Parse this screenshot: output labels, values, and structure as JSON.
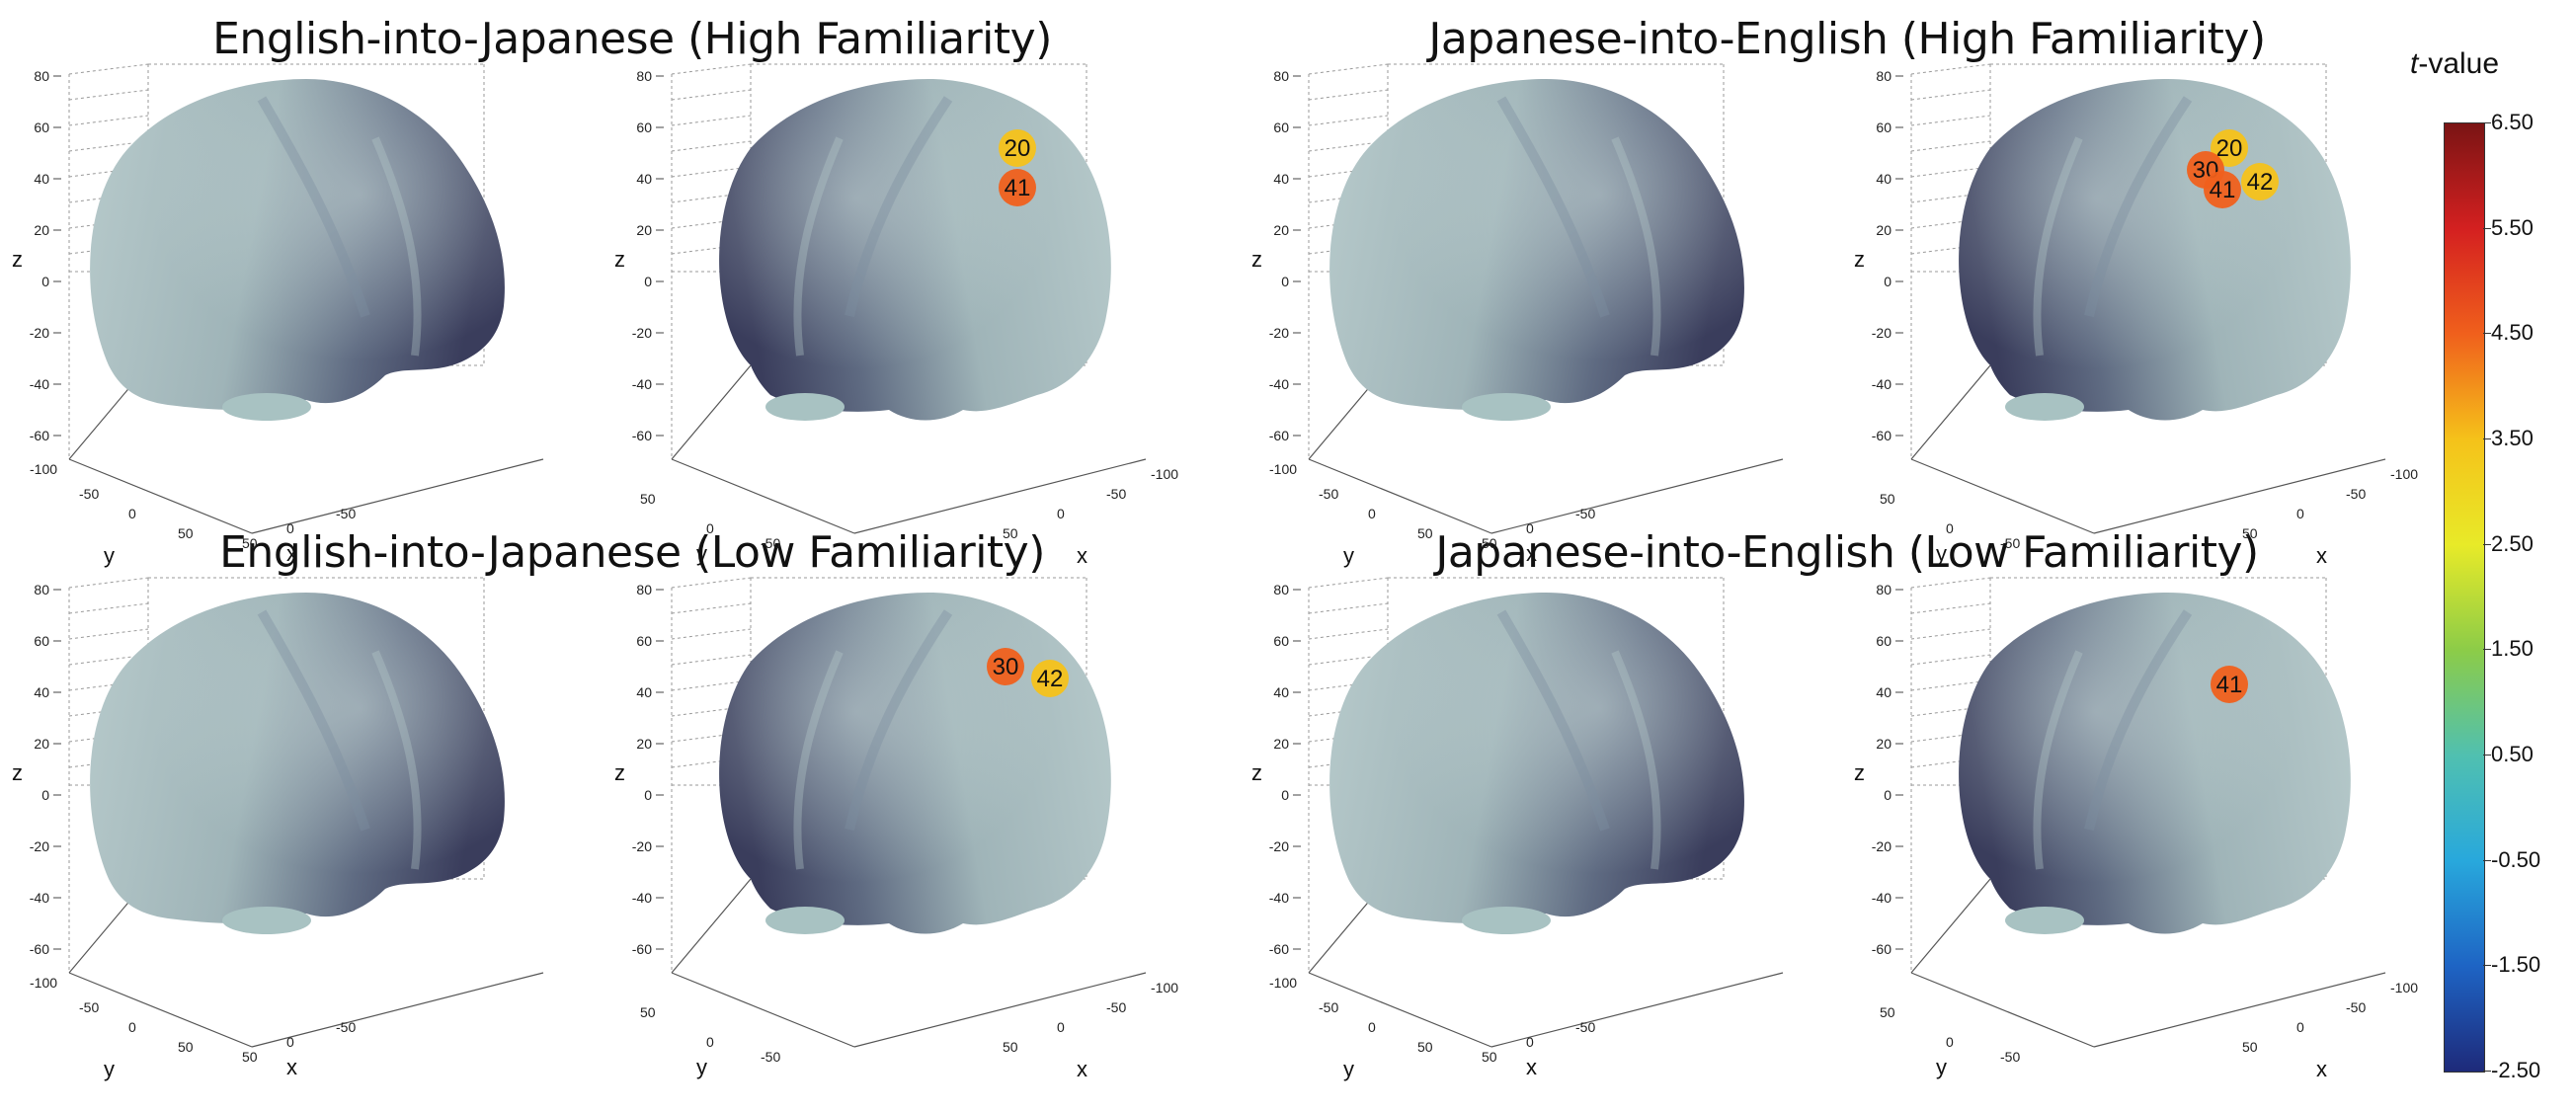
{
  "titles": {
    "tl": "English-into-Japanese (High Familiarity)",
    "tr": "Japanese-into-English (High Familiarity)",
    "bl": "English-into-Japanese (Low Familiarity)",
    "br": "Japanese-into-English (Low Familiarity)"
  },
  "axes": {
    "z_label": "z",
    "y_label": "y",
    "x_label": "x",
    "z_ticks": [
      "80",
      "60",
      "40",
      "20",
      "0",
      "-20",
      "-40",
      "-60"
    ],
    "y_ticks": [
      "-100",
      "-50",
      "0",
      "50"
    ],
    "x_ticks": [
      "50",
      "0",
      "-50"
    ]
  },
  "panels": [
    {
      "group": "tl",
      "view": "left",
      "blobs": []
    },
    {
      "group": "tl",
      "view": "right",
      "blobs": [
        {
          "label": "20",
          "t": 4.0
        },
        {
          "label": "41",
          "t": 4.3
        }
      ]
    },
    {
      "group": "tr",
      "view": "left",
      "blobs": []
    },
    {
      "group": "tr",
      "view": "right",
      "blobs": [
        {
          "label": "20",
          "t": 3.9
        },
        {
          "label": "30",
          "t": 4.1
        },
        {
          "label": "41",
          "t": 4.6
        },
        {
          "label": "42",
          "t": 3.8
        }
      ]
    },
    {
      "group": "bl",
      "view": "left",
      "blobs": []
    },
    {
      "group": "bl",
      "view": "right",
      "blobs": [
        {
          "label": "30",
          "t": 4.1
        },
        {
          "label": "42",
          "t": 4.0
        }
      ]
    },
    {
      "group": "br",
      "view": "left",
      "blobs": []
    },
    {
      "group": "br",
      "view": "right",
      "blobs": [
        {
          "label": "41",
          "t": 4.8
        }
      ]
    }
  ],
  "colorbar": {
    "title_italic": "t",
    "title_rest": "-value",
    "min": -2.5,
    "max": 6.5,
    "ticks": [
      "6.50",
      "5.50",
      "4.50",
      "3.50",
      "2.50",
      "1.50",
      "0.50",
      "-0.50",
      "-1.50",
      "-2.50"
    ],
    "colors": [
      "#7a1414",
      "#d42020",
      "#f0601c",
      "#f5c21a",
      "#e8ea28",
      "#8ccc48",
      "#50c0b0",
      "#28a8dc",
      "#1e64c4",
      "#1e2a7a"
    ]
  }
}
